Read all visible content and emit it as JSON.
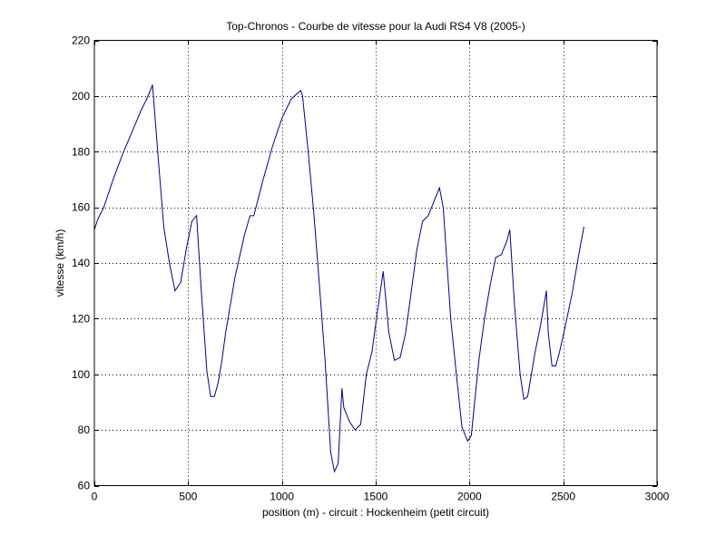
{
  "chart_data": {
    "type": "line",
    "title": "Top-Chronos - Courbe de vitesse pour la Audi RS4 V8 (2005-)",
    "xlabel": "position (m) - circuit : Hockenheim (petit circuit)",
    "ylabel": "vitesse (km/h)",
    "xlim": [
      0,
      3000
    ],
    "ylim": [
      60,
      220
    ],
    "xticks": [
      0,
      500,
      1000,
      1500,
      2000,
      2500,
      3000
    ],
    "yticks": [
      60,
      80,
      100,
      120,
      140,
      160,
      180,
      200,
      220
    ],
    "grid": true,
    "line_color": "#00008b",
    "series": [
      {
        "x": [
          0,
          20,
          50,
          100,
          150,
          200,
          250,
          280,
          310,
          340,
          370,
          400,
          430,
          460,
          490,
          520,
          545,
          570,
          600,
          620,
          640,
          660,
          680,
          700,
          750,
          800,
          830,
          850,
          900,
          950,
          1000,
          1050,
          1100,
          1110,
          1140,
          1170,
          1200,
          1230,
          1260,
          1280,
          1300,
          1320,
          1330,
          1360,
          1390,
          1420,
          1450,
          1480,
          1510,
          1540,
          1570,
          1600,
          1630,
          1660,
          1690,
          1720,
          1750,
          1780,
          1810,
          1840,
          1860,
          1880,
          1900,
          1930,
          1960,
          1990,
          2010,
          2020,
          2050,
          2080,
          2110,
          2140,
          2170,
          2200,
          2215,
          2240,
          2270,
          2290,
          2310,
          2330,
          2350,
          2380,
          2410,
          2420,
          2440,
          2460,
          2480,
          2510,
          2550,
          2580,
          2610
        ],
        "y": [
          152,
          156,
          160,
          170,
          179,
          187,
          195,
          199,
          204,
          178,
          153,
          140,
          130,
          133,
          145,
          155,
          157,
          130,
          101,
          92,
          92,
          97,
          105,
          115,
          135,
          150,
          157,
          157,
          170,
          182,
          192,
          199,
          202,
          200,
          180,
          158,
          132,
          105,
          72,
          65,
          68,
          95,
          88,
          83,
          80,
          82,
          100,
          108,
          123,
          137,
          115,
          105,
          106,
          115,
          130,
          145,
          155,
          157,
          162,
          167,
          160,
          140,
          120,
          100,
          81,
          76,
          78,
          85,
          105,
          120,
          132,
          142,
          143,
          148,
          152,
          125,
          100,
          91,
          92,
          100,
          108,
          118,
          130,
          115,
          103,
          103,
          108,
          117,
          130,
          142,
          153
        ]
      }
    ]
  }
}
